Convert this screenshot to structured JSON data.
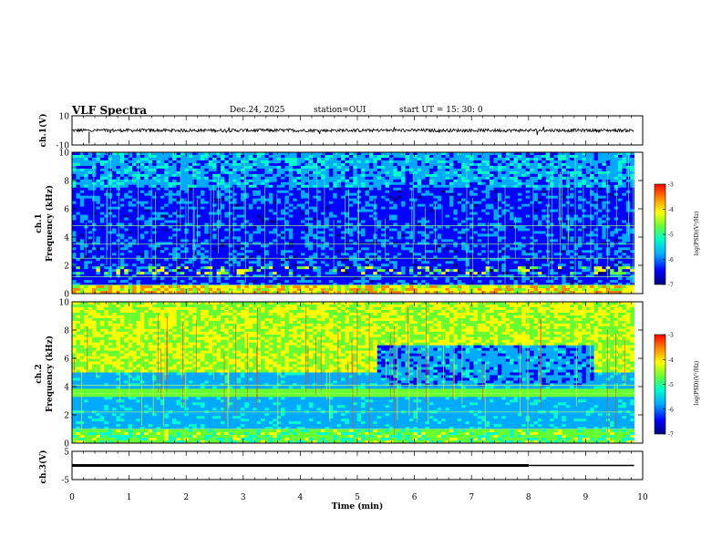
{
  "header": {
    "title": "VLF Spectra",
    "date": "Dec.24, 2025",
    "station": "station=OUI",
    "start_ut": "start  UT  =   15: 30: 0"
  },
  "colors": {
    "trace": "#000000",
    "colormap": [
      "#000080",
      "#0000ff",
      "#00aaff",
      "#00ffcc",
      "#66ff33",
      "#ffff00",
      "#ff8800",
      "#ff0000"
    ]
  },
  "chart_data": [
    {
      "type": "line",
      "name": "ch1",
      "ylabel": "ch.1(V)",
      "ylim": [
        -10,
        10
      ],
      "yticks": [
        10,
        -10
      ],
      "xlim": [
        0,
        10
      ],
      "level_approx": 0,
      "extent_min": [
        0,
        9.85
      ]
    },
    {
      "type": "heatmap",
      "name": "ch1-spectrogram",
      "ylabel": "ch.1\nFrequency (kHz)",
      "ylim": [
        0,
        10
      ],
      "yticks": [
        0,
        2,
        4,
        6,
        8,
        10
      ],
      "xlim": [
        0,
        10
      ],
      "data_extent_min": [
        0,
        9.85
      ],
      "colorbar": {
        "label": "log(PSD)(V²/Hz)",
        "range": [
          -7,
          -3
        ],
        "ticks": [
          "-3",
          "-4",
          "-5",
          "-6",
          "-7"
        ]
      }
    },
    {
      "type": "heatmap",
      "name": "ch2-spectrogram",
      "ylabel": "ch.2\nFrequency (kHz)",
      "ylim": [
        0,
        10
      ],
      "yticks": [
        0,
        2,
        4,
        6,
        8,
        10
      ],
      "xlim": [
        0,
        10
      ],
      "data_extent_min": [
        0,
        9.85
      ],
      "colorbar": {
        "label": "log(PSD)(V²/Hz)",
        "range": [
          -7,
          -3
        ],
        "ticks": [
          "-3",
          "-4",
          "-5",
          "-6",
          "-7"
        ]
      }
    },
    {
      "type": "line",
      "name": "ch3",
      "ylabel": "ch.3(V)",
      "ylim": [
        -5,
        5
      ],
      "yticks": [
        5,
        -5
      ],
      "xlim": [
        0,
        10
      ],
      "segments": [
        {
          "x": [
            0,
            8.0
          ],
          "y": 0
        },
        {
          "x": [
            8.0,
            9.85
          ],
          "y": 0
        }
      ]
    }
  ],
  "xaxis": {
    "label": "Time (min)",
    "ticks": [
      "0",
      "1",
      "2",
      "3",
      "4",
      "5",
      "6",
      "7",
      "8",
      "9",
      "10"
    ]
  },
  "labels": {
    "ch1": "ch.1(V)",
    "ch1_spec_line1": "ch.1",
    "ch1_spec_line2": "Frequency (kHz)",
    "ch2_spec_line1": "ch.2",
    "ch2_spec_line2": "Frequency (kHz)",
    "ch3": "ch.3(V)",
    "colorbar": "log(PSD)(V²/Hz)"
  }
}
